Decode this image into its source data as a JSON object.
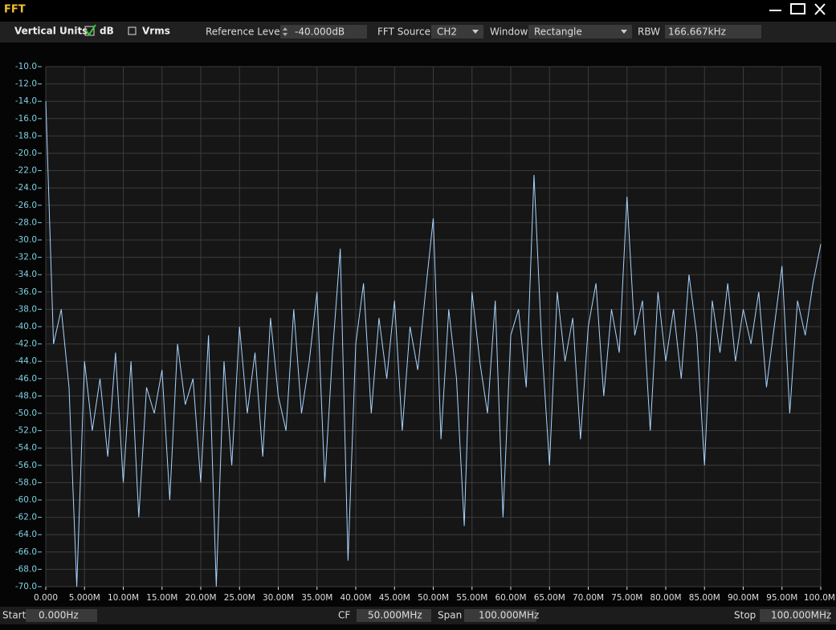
{
  "window": {
    "title": "FFT"
  },
  "toolbar": {
    "vertical_units": "Vertical Units",
    "db": "dB",
    "vrms": "Vrms",
    "reference_level_label": "Reference Level",
    "reference_level": "-40.000dB",
    "fft_source_label": "FFT Source",
    "fft_source": "CH2",
    "window_label": "Window",
    "window": "Rectangle",
    "rbw_label": "RBW",
    "rbw": "166.667kHz"
  },
  "footer": {
    "start_label": "Start",
    "start": "0.000Hz",
    "cf_label": "CF",
    "cf": "50.000MHz",
    "span_label": "Span",
    "span": "100.000MHz",
    "stop_label": "Stop",
    "stop": "100.000MHz"
  },
  "chart_data": {
    "type": "line",
    "color": "#a8d4ff",
    "grid": true,
    "x": [
      0,
      1,
      2,
      3,
      4,
      5,
      6,
      7,
      8,
      9,
      10,
      11,
      12,
      13,
      14,
      15,
      16,
      17,
      18,
      19,
      20,
      21,
      22,
      23,
      24,
      25,
      26,
      27,
      28,
      29,
      30,
      31,
      32,
      33,
      34,
      35,
      36,
      37,
      38,
      39,
      40,
      41,
      42,
      43,
      44,
      45,
      46,
      47,
      48,
      49,
      50,
      51,
      52,
      53,
      54,
      55,
      56,
      57,
      58,
      59,
      60,
      61,
      62,
      63,
      64,
      65,
      66,
      67,
      68,
      69,
      70,
      71,
      72,
      73,
      74,
      75,
      76,
      77,
      78,
      79,
      80,
      81,
      82,
      83,
      84,
      85,
      86,
      87,
      88,
      89,
      90,
      91,
      92,
      93,
      94,
      95,
      96,
      97,
      98,
      99,
      100
    ],
    "values": [
      -14,
      -42,
      -38,
      -47,
      -70,
      -44,
      -52,
      -46,
      -55,
      -43,
      -58,
      -44,
      -62,
      -47,
      -50,
      -45,
      -60,
      -42,
      -49,
      -46,
      -58,
      -41,
      -70,
      -44,
      -56,
      -40,
      -50,
      -43,
      -55,
      -39,
      -48,
      -52,
      -38,
      -50,
      -44,
      -36,
      -58,
      -43,
      -31,
      -67,
      -42,
      -35,
      -50,
      -39,
      -46,
      -37,
      -52,
      -40,
      -45,
      -36,
      -27.5,
      -53,
      -38,
      -46,
      -63,
      -36,
      -44,
      -50,
      -37,
      -62,
      -41,
      -38,
      -47,
      -22.5,
      -42,
      -56,
      -36,
      -44,
      -39,
      -53,
      -40,
      -35,
      -48,
      -38,
      -43,
      -25,
      -41,
      -37,
      -52,
      -36,
      -44,
      -38,
      -46,
      -34,
      -41,
      -56,
      -37,
      -43,
      -35,
      -44,
      -38,
      -42,
      -36,
      -47,
      -40,
      -33,
      -50,
      -37,
      -41,
      -35,
      -30.5
    ],
    "xlim": [
      0,
      100
    ],
    "ylim": [
      -70,
      -10
    ],
    "xticks": [
      {
        "value": 0,
        "label": "0.000"
      },
      {
        "value": 5,
        "label": "5.000M"
      },
      {
        "value": 10,
        "label": "10.00M"
      },
      {
        "value": 15,
        "label": "15.00M"
      },
      {
        "value": 20,
        "label": "20.00M"
      },
      {
        "value": 25,
        "label": "25.00M"
      },
      {
        "value": 30,
        "label": "30.00M"
      },
      {
        "value": 35,
        "label": "35.00M"
      },
      {
        "value": 40,
        "label": "40.00M"
      },
      {
        "value": 45,
        "label": "45.00M"
      },
      {
        "value": 50,
        "label": "50.00M"
      },
      {
        "value": 55,
        "label": "55.00M"
      },
      {
        "value": 60,
        "label": "60.00M"
      },
      {
        "value": 65,
        "label": "65.00M"
      },
      {
        "value": 70,
        "label": "70.00M"
      },
      {
        "value": 75,
        "label": "75.00M"
      },
      {
        "value": 80,
        "label": "80.00M"
      },
      {
        "value": 85,
        "label": "85.00M"
      },
      {
        "value": 90,
        "label": "90.00M"
      },
      {
        "value": 95,
        "label": "95.00M"
      },
      {
        "value": 100,
        "label": "100.0M"
      }
    ],
    "yticks": [
      {
        "value": -70,
        "label": "-70.0"
      },
      {
        "value": -68,
        "label": "-68.0"
      },
      {
        "value": -66,
        "label": "-66.0"
      },
      {
        "value": -64,
        "label": "-64.0"
      },
      {
        "value": -62,
        "label": "-62.0"
      },
      {
        "value": -60,
        "label": "-60.0"
      },
      {
        "value": -58,
        "label": "-58.0"
      },
      {
        "value": -56,
        "label": "-56.0"
      },
      {
        "value": -54,
        "label": "-54.0"
      },
      {
        "value": -52,
        "label": "-52.0"
      },
      {
        "value": -50,
        "label": "-50.0"
      },
      {
        "value": -48,
        "label": "-48.0"
      },
      {
        "value": -46,
        "label": "-46.0"
      },
      {
        "value": -44,
        "label": "-44.0"
      },
      {
        "value": -42,
        "label": "-42.0"
      },
      {
        "value": -40,
        "label": "-40.0"
      },
      {
        "value": -38,
        "label": "-38.0"
      },
      {
        "value": -36,
        "label": "-36.0"
      },
      {
        "value": -34,
        "label": "-34.0"
      },
      {
        "value": -32,
        "label": "-32.0"
      },
      {
        "value": -30,
        "label": "-30.0"
      },
      {
        "value": -28,
        "label": "-28.0"
      },
      {
        "value": -26,
        "label": "-26.0"
      },
      {
        "value": -24,
        "label": "-24.0"
      },
      {
        "value": -22,
        "label": "-22.0"
      },
      {
        "value": -20,
        "label": "-20.0"
      },
      {
        "value": -18,
        "label": "-18.0"
      },
      {
        "value": -16,
        "label": "-16.0"
      },
      {
        "value": -14,
        "label": "-14.0"
      },
      {
        "value": -12,
        "label": "-12.0"
      },
      {
        "value": -10,
        "label": "-10.0"
      }
    ]
  }
}
